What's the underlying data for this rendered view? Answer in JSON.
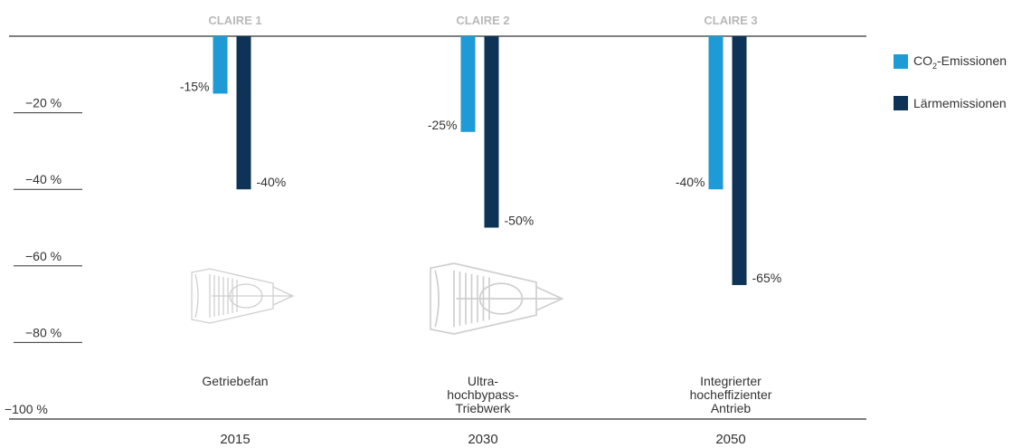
{
  "colors": {
    "co2": "#1e9ad6",
    "noise": "#0e3356",
    "axis": "#333333",
    "header": "#b9b9b9",
    "engine": "#cfcfcf"
  },
  "legend": {
    "co2": {
      "prefix": "CO",
      "sub": "2",
      "suffix": "-Emissionen"
    },
    "noise": {
      "label": "Lärmemissionen"
    }
  },
  "chart_data": {
    "type": "bar",
    "categories": [
      "2015",
      "2030",
      "2050"
    ],
    "programs": [
      "CLAIRE 1",
      "CLAIRE 2",
      "CLAIRE 3"
    ],
    "engine_labels": [
      [
        "Getriebefan"
      ],
      [
        "Ultra-",
        "hochbypass-",
        "Triebwerk"
      ],
      [
        "Integrierter",
        "hocheffizienter",
        "Antrieb"
      ]
    ],
    "series": [
      {
        "name": "CO2-Emissionen",
        "key": "co2",
        "values": [
          -15,
          -25,
          -40
        ],
        "labels": [
          "-15%",
          "-25%",
          "-40%"
        ]
      },
      {
        "name": "Lärmemissionen",
        "key": "noise",
        "values": [
          -40,
          -50,
          -65
        ],
        "labels": [
          "-40%",
          "-50%",
          "-65%"
        ]
      }
    ],
    "yticks": [
      -20,
      -40,
      -60,
      -80,
      -100
    ],
    "ytick_labels": [
      "−20 %",
      "−40 %",
      "−60 %",
      "−80 %",
      "−100 %"
    ],
    "ylim": [
      -100,
      0
    ]
  }
}
